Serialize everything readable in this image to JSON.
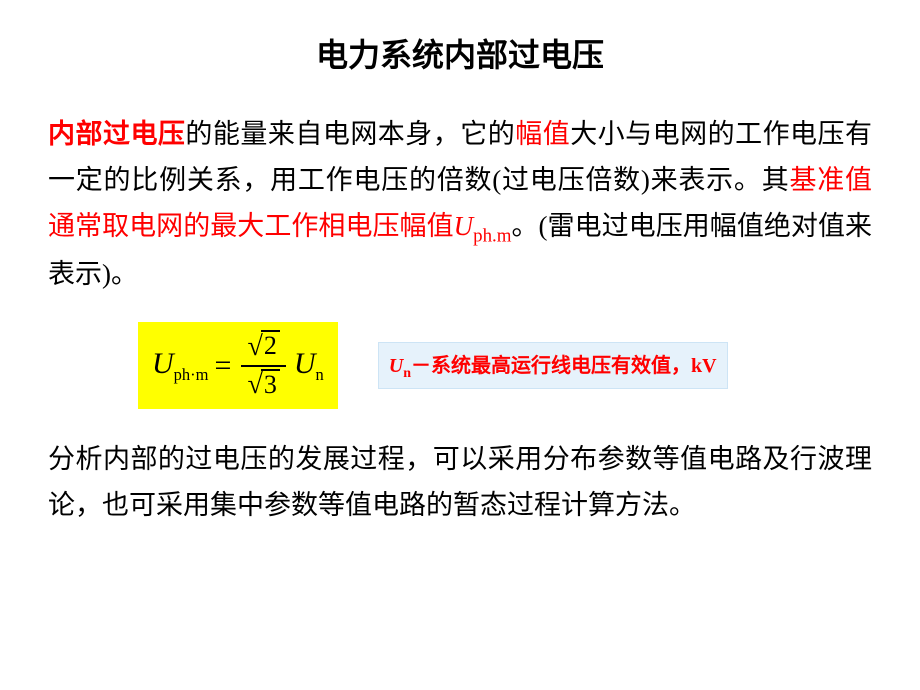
{
  "title": {
    "text": "电力系统内部过电压",
    "fontsize": 32,
    "color": "#000000"
  },
  "para1": {
    "fontsize": 27,
    "lineheight": 1.7,
    "s1": {
      "text": "内部过电压",
      "color": "#ff0000",
      "bold": true
    },
    "s2": "的能量来自电网本身，它的",
    "s3": {
      "text": "幅值",
      "color": "#ff0000"
    },
    "s4": "大小与电网的工作电压有一定的比例关系，用工作电压的倍数(过电压倍数)来表示。其",
    "s5": {
      "text": "基准值通常取电网的最大工作相电压幅值",
      "color": "#ff0000"
    },
    "s6_U": "U",
    "s6_sub": "ph.m",
    "s7": "。(雷电过电压用幅值绝对值来表示)。"
  },
  "formula": {
    "lhs_U": "U",
    "lhs_sub": "ph·m",
    "eq": "=",
    "num_sqrt": "2",
    "den_sqrt": "3",
    "rhs_U": "U",
    "rhs_sub": "n",
    "bg_color": "#ffff00"
  },
  "note": {
    "fontsize": 20,
    "bg_color": "#e6f2fb",
    "color": "#ff0000",
    "u": "U",
    "usub": "n",
    "dash": "－",
    "text": "系统最高运行线电压有效值，kV"
  },
  "para2": {
    "fontsize": 27,
    "lineheight": 1.7,
    "text": "分析内部的过电压的发展过程，可以采用分布参数等值电路及行波理论，也可采用集中参数等值电路的暂态过程计算方法。"
  }
}
